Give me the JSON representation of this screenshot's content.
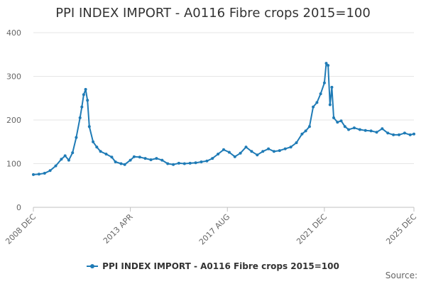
{
  "chart_data": {
    "type": "line",
    "title": "PPI INDEX IMPORT - A0116 Fibre crops 2015=100",
    "xlabel": "",
    "ylabel": "",
    "ylim": [
      0,
      400
    ],
    "yticks": [
      0,
      100,
      200,
      300,
      400
    ],
    "x_tick_labels": [
      "2008 DEC",
      "2013 APR",
      "2017 AUG",
      "2021 DEC",
      "2025 DEC"
    ],
    "x_range": [
      "2008-12",
      "2025-12"
    ],
    "grid": true,
    "legend_position": "bottom",
    "series": [
      {
        "name": "PPI INDEX IMPORT - A0116 Fibre crops 2015=100",
        "color": "#1f7bb6",
        "points": [
          [
            "2008-12",
            75
          ],
          [
            "2009-03",
            76
          ],
          [
            "2009-06",
            78
          ],
          [
            "2009-09",
            84
          ],
          [
            "2009-12",
            95
          ],
          [
            "2010-03",
            110
          ],
          [
            "2010-05",
            118
          ],
          [
            "2010-07",
            108
          ],
          [
            "2010-09",
            125
          ],
          [
            "2010-11",
            160
          ],
          [
            "2011-01",
            205
          ],
          [
            "2011-02",
            230
          ],
          [
            "2011-03",
            258
          ],
          [
            "2011-04",
            270
          ],
          [
            "2011-05",
            245
          ],
          [
            "2011-06",
            185
          ],
          [
            "2011-08",
            150
          ],
          [
            "2011-10",
            138
          ],
          [
            "2011-12",
            128
          ],
          [
            "2012-03",
            122
          ],
          [
            "2012-06",
            115
          ],
          [
            "2012-08",
            104
          ],
          [
            "2012-11",
            100
          ],
          [
            "2013-01",
            98
          ],
          [
            "2013-04",
            108
          ],
          [
            "2013-06",
            116
          ],
          [
            "2013-09",
            115
          ],
          [
            "2013-12",
            112
          ],
          [
            "2014-03",
            109
          ],
          [
            "2014-06",
            112
          ],
          [
            "2014-09",
            108
          ],
          [
            "2014-12",
            100
          ],
          [
            "2015-03",
            98
          ],
          [
            "2015-06",
            101
          ],
          [
            "2015-09",
            100
          ],
          [
            "2015-12",
            101
          ],
          [
            "2016-03",
            102
          ],
          [
            "2016-06",
            104
          ],
          [
            "2016-09",
            106
          ],
          [
            "2016-12",
            112
          ],
          [
            "2017-03",
            122
          ],
          [
            "2017-06",
            132
          ],
          [
            "2017-09",
            126
          ],
          [
            "2017-12",
            116
          ],
          [
            "2018-03",
            124
          ],
          [
            "2018-06",
            138
          ],
          [
            "2018-09",
            128
          ],
          [
            "2018-12",
            120
          ],
          [
            "2019-03",
            128
          ],
          [
            "2019-06",
            134
          ],
          [
            "2019-09",
            128
          ],
          [
            "2019-12",
            130
          ],
          [
            "2020-03",
            134
          ],
          [
            "2020-06",
            138
          ],
          [
            "2020-09",
            148
          ],
          [
            "2020-12",
            168
          ],
          [
            "2021-02",
            175
          ],
          [
            "2021-04",
            185
          ],
          [
            "2021-06",
            230
          ],
          [
            "2021-08",
            240
          ],
          [
            "2021-10",
            260
          ],
          [
            "2021-12",
            285
          ],
          [
            "2022-01",
            330
          ],
          [
            "2022-02",
            325
          ],
          [
            "2022-03",
            235
          ],
          [
            "2022-04",
            275
          ],
          [
            "2022-05",
            205
          ],
          [
            "2022-07",
            195
          ],
          [
            "2022-09",
            198
          ],
          [
            "2022-11",
            185
          ],
          [
            "2023-01",
            178
          ],
          [
            "2023-04",
            182
          ],
          [
            "2023-07",
            178
          ],
          [
            "2023-10",
            176
          ],
          [
            "2024-01",
            175
          ],
          [
            "2024-04",
            172
          ],
          [
            "2024-07",
            180
          ],
          [
            "2024-10",
            170
          ],
          [
            "2025-01",
            166
          ],
          [
            "2025-04",
            166
          ],
          [
            "2025-07",
            170
          ],
          [
            "2025-10",
            166
          ],
          [
            "2025-12",
            168
          ]
        ]
      }
    ]
  },
  "source_label": "Source:"
}
